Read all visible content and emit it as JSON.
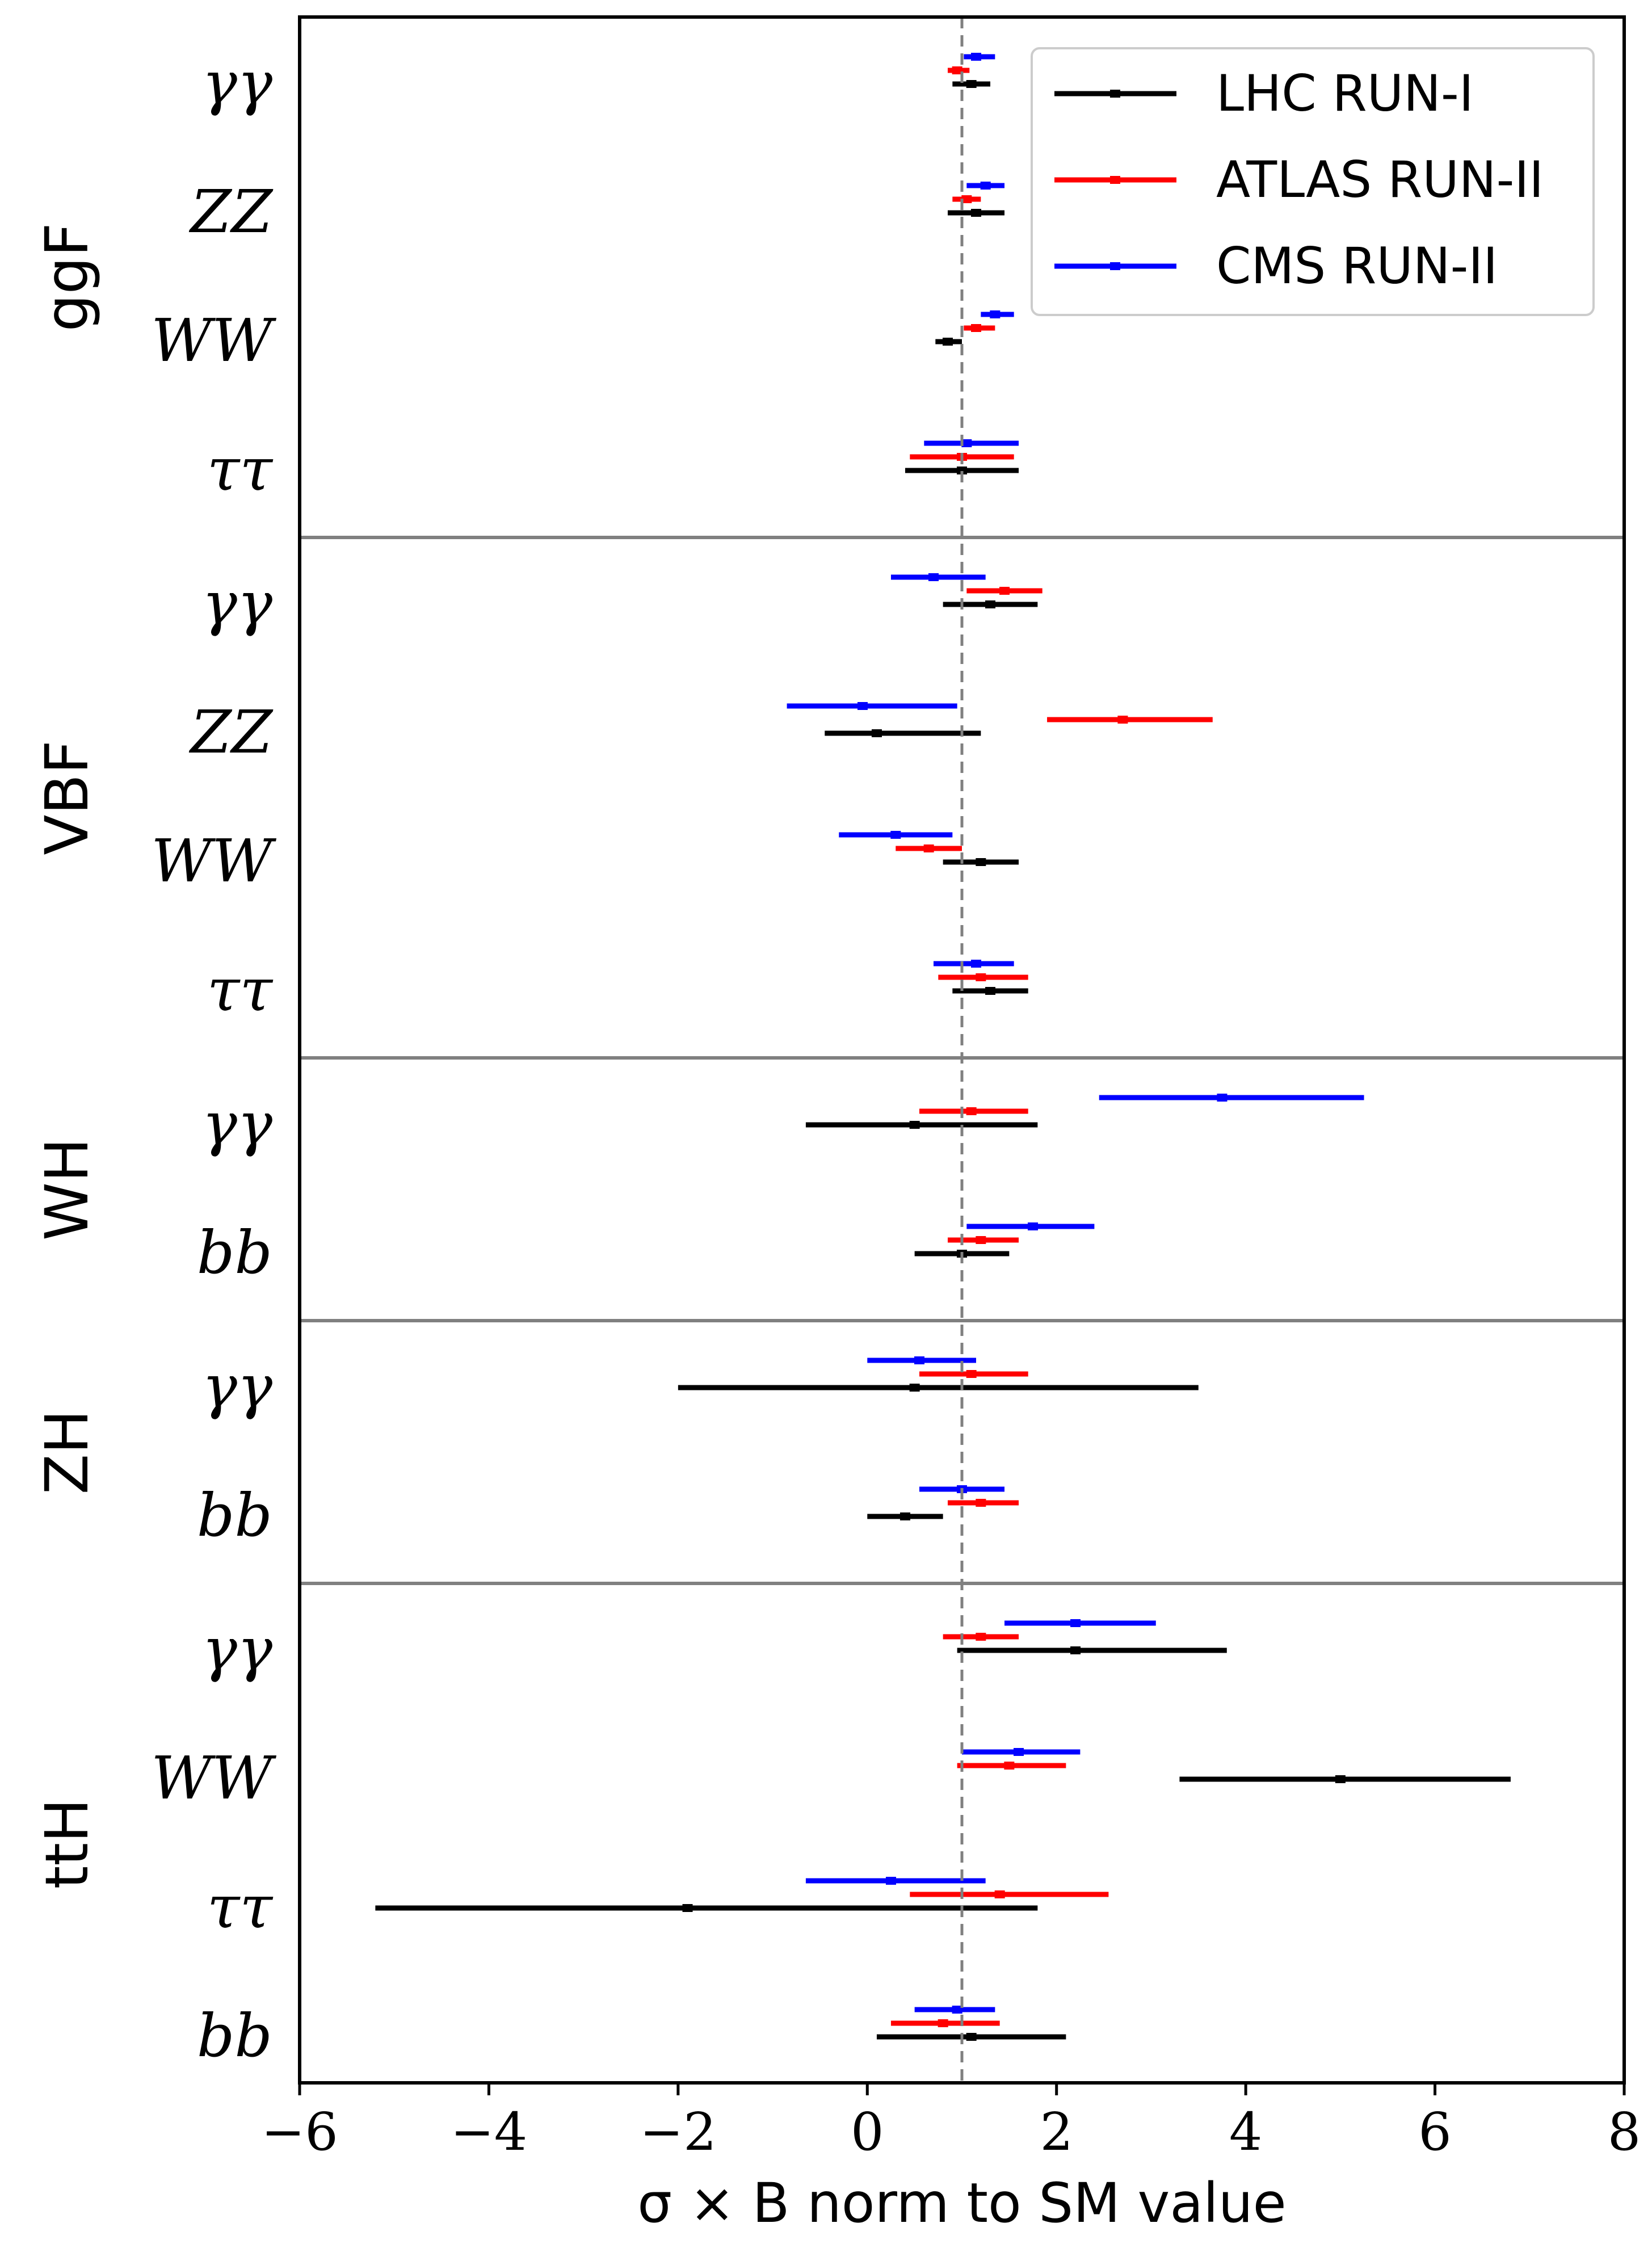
{
  "chart_data": {
    "type": "errorbar",
    "xlabel": "σ × B norm to SM value",
    "xlim": [
      -6,
      8
    ],
    "xticks": [
      "−6",
      "−4",
      "−2",
      "0",
      "2",
      "4",
      "6",
      "8"
    ],
    "reference_line": 1,
    "legend": {
      "position": "top-right",
      "entries": [
        "LHC RUN-I",
        "ATLAS RUN-II",
        "CMS RUN-II"
      ]
    },
    "colors": {
      "LHC RUN-I": "#000000",
      "ATLAS RUN-II": "#ff0000",
      "CMS RUN-II": "#0000ff"
    },
    "groups": [
      {
        "name": "ggF",
        "channels": [
          {
            "label": "γγ",
            "values": [
              {
                "series": "LHC RUN-I",
                "center": 1.1,
                "lo": 0.9,
                "hi": 1.3
              },
              {
                "series": "ATLAS RUN-II",
                "center": 0.95,
                "lo": 0.85,
                "hi": 1.08
              },
              {
                "series": "CMS RUN-II",
                "center": 1.15,
                "lo": 1.02,
                "hi": 1.35
              }
            ]
          },
          {
            "label": "ZZ",
            "values": [
              {
                "series": "LHC RUN-I",
                "center": 1.15,
                "lo": 0.85,
                "hi": 1.45
              },
              {
                "series": "ATLAS RUN-II",
                "center": 1.05,
                "lo": 0.9,
                "hi": 1.2
              },
              {
                "series": "CMS RUN-II",
                "center": 1.25,
                "lo": 1.05,
                "hi": 1.45
              }
            ]
          },
          {
            "label": "WW",
            "values": [
              {
                "series": "LHC RUN-I",
                "center": 0.85,
                "lo": 0.72,
                "hi": 1.0
              },
              {
                "series": "ATLAS RUN-II",
                "center": 1.15,
                "lo": 1.02,
                "hi": 1.35
              },
              {
                "series": "CMS RUN-II",
                "center": 1.35,
                "lo": 1.2,
                "hi": 1.55
              }
            ]
          },
          {
            "label": "ττ",
            "values": [
              {
                "series": "LHC RUN-I",
                "center": 1.0,
                "lo": 0.4,
                "hi": 1.6
              },
              {
                "series": "ATLAS RUN-II",
                "center": 1.0,
                "lo": 0.45,
                "hi": 1.55
              },
              {
                "series": "CMS RUN-II",
                "center": 1.05,
                "lo": 0.6,
                "hi": 1.6
              }
            ]
          }
        ]
      },
      {
        "name": "VBF",
        "channels": [
          {
            "label": "γγ",
            "values": [
              {
                "series": "LHC RUN-I",
                "center": 1.3,
                "lo": 0.8,
                "hi": 1.8
              },
              {
                "series": "ATLAS RUN-II",
                "center": 1.45,
                "lo": 1.05,
                "hi": 1.85
              },
              {
                "series": "CMS RUN-II",
                "center": 0.7,
                "lo": 0.25,
                "hi": 1.25
              }
            ]
          },
          {
            "label": "ZZ",
            "values": [
              {
                "series": "LHC RUN-I",
                "center": 0.1,
                "lo": -0.45,
                "hi": 1.2
              },
              {
                "series": "ATLAS RUN-II",
                "center": 2.7,
                "lo": 1.9,
                "hi": 3.65
              },
              {
                "series": "CMS RUN-II",
                "center": -0.05,
                "lo": -0.85,
                "hi": 0.95
              }
            ]
          },
          {
            "label": "WW",
            "values": [
              {
                "series": "LHC RUN-I",
                "center": 1.2,
                "lo": 0.8,
                "hi": 1.6
              },
              {
                "series": "ATLAS RUN-II",
                "center": 0.65,
                "lo": 0.3,
                "hi": 1.0
              },
              {
                "series": "CMS RUN-II",
                "center": 0.3,
                "lo": -0.3,
                "hi": 0.9
              }
            ]
          },
          {
            "label": "ττ",
            "values": [
              {
                "series": "LHC RUN-I",
                "center": 1.3,
                "lo": 0.9,
                "hi": 1.7
              },
              {
                "series": "ATLAS RUN-II",
                "center": 1.2,
                "lo": 0.75,
                "hi": 1.7
              },
              {
                "series": "CMS RUN-II",
                "center": 1.15,
                "lo": 0.7,
                "hi": 1.55
              }
            ]
          }
        ]
      },
      {
        "name": "WH",
        "channels": [
          {
            "label": "γγ",
            "values": [
              {
                "series": "LHC RUN-I",
                "center": 0.5,
                "lo": -0.65,
                "hi": 1.8
              },
              {
                "series": "ATLAS RUN-II",
                "center": 1.1,
                "lo": 0.55,
                "hi": 1.7
              },
              {
                "series": "CMS RUN-II",
                "center": 3.75,
                "lo": 2.45,
                "hi": 5.25
              }
            ]
          },
          {
            "label": "bb",
            "values": [
              {
                "series": "LHC RUN-I",
                "center": 1.0,
                "lo": 0.5,
                "hi": 1.5
              },
              {
                "series": "ATLAS RUN-II",
                "center": 1.2,
                "lo": 0.85,
                "hi": 1.6
              },
              {
                "series": "CMS RUN-II",
                "center": 1.75,
                "lo": 1.05,
                "hi": 2.4
              }
            ]
          }
        ]
      },
      {
        "name": "ZH",
        "channels": [
          {
            "label": "γγ",
            "values": [
              {
                "series": "LHC RUN-I",
                "center": 0.5,
                "lo": -2.0,
                "hi": 3.5
              },
              {
                "series": "ATLAS RUN-II",
                "center": 1.1,
                "lo": 0.55,
                "hi": 1.7
              },
              {
                "series": "CMS RUN-II",
                "center": 0.55,
                "lo": 0.0,
                "hi": 1.15
              }
            ]
          },
          {
            "label": "bb",
            "values": [
              {
                "series": "LHC RUN-I",
                "center": 0.4,
                "lo": 0.0,
                "hi": 0.8
              },
              {
                "series": "ATLAS RUN-II",
                "center": 1.2,
                "lo": 0.85,
                "hi": 1.6
              },
              {
                "series": "CMS RUN-II",
                "center": 1.0,
                "lo": 0.55,
                "hi": 1.45
              }
            ]
          }
        ]
      },
      {
        "name": "ttH",
        "channels": [
          {
            "label": "γγ",
            "values": [
              {
                "series": "LHC RUN-I",
                "center": 2.2,
                "lo": 0.95,
                "hi": 3.8
              },
              {
                "series": "ATLAS RUN-II",
                "center": 1.2,
                "lo": 0.8,
                "hi": 1.6
              },
              {
                "series": "CMS RUN-II",
                "center": 2.2,
                "lo": 1.45,
                "hi": 3.05
              }
            ]
          },
          {
            "label": "WW",
            "values": [
              {
                "series": "LHC RUN-I",
                "center": 5.0,
                "lo": 3.3,
                "hi": 6.8
              },
              {
                "series": "ATLAS RUN-II",
                "center": 1.5,
                "lo": 0.95,
                "hi": 2.1
              },
              {
                "series": "CMS RUN-II",
                "center": 1.6,
                "lo": 1.0,
                "hi": 2.25
              }
            ]
          },
          {
            "label": "ττ",
            "values": [
              {
                "series": "LHC RUN-I",
                "center": -1.9,
                "lo": -5.2,
                "hi": 1.8
              },
              {
                "series": "ATLAS RUN-II",
                "center": 1.4,
                "lo": 0.45,
                "hi": 2.55
              },
              {
                "series": "CMS RUN-II",
                "center": 0.25,
                "lo": -0.65,
                "hi": 1.25
              }
            ]
          },
          {
            "label": "bb",
            "values": [
              {
                "series": "LHC RUN-I",
                "center": 1.1,
                "lo": 0.1,
                "hi": 2.1
              },
              {
                "series": "ATLAS RUN-II",
                "center": 0.8,
                "lo": 0.25,
                "hi": 1.4
              },
              {
                "series": "CMS RUN-II",
                "center": 0.95,
                "lo": 0.5,
                "hi": 1.35
              }
            ]
          }
        ]
      }
    ]
  }
}
